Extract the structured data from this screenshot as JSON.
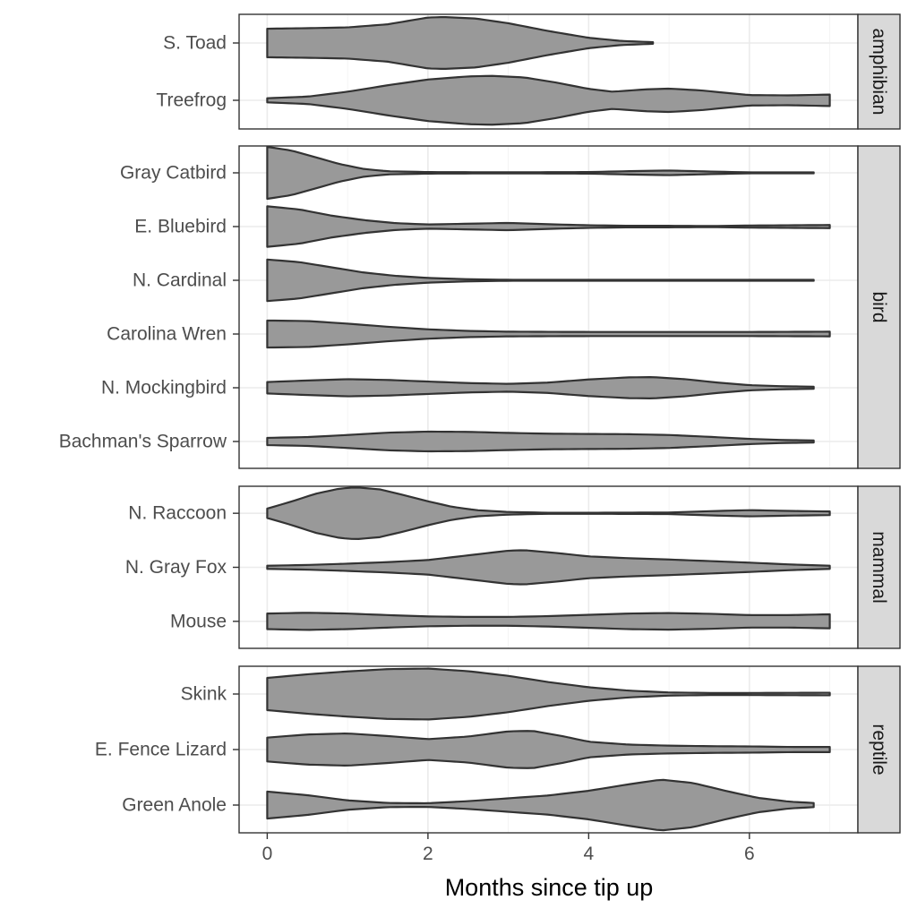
{
  "chart_data": {
    "type": "violin",
    "orientation": "horizontal",
    "title": "",
    "xlabel": "Months since tip up",
    "ylabel": "",
    "xlim": [
      -0.35,
      7.35
    ],
    "x_ticks": [
      0,
      2,
      4,
      6
    ],
    "grid": true,
    "fill_color": "#999999",
    "stroke_color": "#333333",
    "facets": [
      {
        "label": "amphibian",
        "categories": [
          {
            "name": "S. Toad",
            "min": 0,
            "max": 4.8,
            "density": [
              [
                0,
                0.55
              ],
              [
                0.5,
                0.57
              ],
              [
                1,
                0.6
              ],
              [
                1.5,
                0.72
              ],
              [
                2,
                0.98
              ],
              [
                2.2,
                1.0
              ],
              [
                2.6,
                0.94
              ],
              [
                3,
                0.76
              ],
              [
                3.5,
                0.46
              ],
              [
                4,
                0.2
              ],
              [
                4.4,
                0.08
              ],
              [
                4.8,
                0.03
              ]
            ]
          },
          {
            "name": "Treefrog",
            "min": 0,
            "max": 7,
            "density": [
              [
                0,
                0.08
              ],
              [
                0.5,
                0.14
              ],
              [
                1,
                0.33
              ],
              [
                1.5,
                0.58
              ],
              [
                2,
                0.8
              ],
              [
                2.5,
                0.92
              ],
              [
                2.8,
                0.94
              ],
              [
                3.2,
                0.88
              ],
              [
                3.6,
                0.68
              ],
              [
                4,
                0.44
              ],
              [
                4.3,
                0.33
              ],
              [
                4.7,
                0.42
              ],
              [
                5,
                0.45
              ],
              [
                5.4,
                0.38
              ],
              [
                6,
                0.2
              ],
              [
                6.5,
                0.19
              ],
              [
                7,
                0.22
              ]
            ]
          }
        ]
      },
      {
        "label": "bird",
        "categories": [
          {
            "name": "Gray Catbird",
            "min": 0,
            "max": 6.8,
            "density": [
              [
                0,
                1.0
              ],
              [
                0.3,
                0.86
              ],
              [
                0.6,
                0.6
              ],
              [
                0.9,
                0.34
              ],
              [
                1.2,
                0.15
              ],
              [
                1.5,
                0.06
              ],
              [
                2,
                0.03
              ],
              [
                3,
                0.02
              ],
              [
                4,
                0.03
              ],
              [
                4.6,
                0.07
              ],
              [
                5,
                0.09
              ],
              [
                5.5,
                0.05
              ],
              [
                6,
                0.02
              ],
              [
                6.8,
                0.02
              ]
            ]
          },
          {
            "name": "E. Bluebird",
            "min": 0,
            "max": 7,
            "density": [
              [
                0,
                0.78
              ],
              [
                0.4,
                0.66
              ],
              [
                0.8,
                0.42
              ],
              [
                1.2,
                0.25
              ],
              [
                1.6,
                0.13
              ],
              [
                2,
                0.08
              ],
              [
                2.5,
                0.11
              ],
              [
                3,
                0.14
              ],
              [
                3.5,
                0.09
              ],
              [
                4,
                0.05
              ],
              [
                4.5,
                0.03
              ],
              [
                5,
                0.03
              ],
              [
                5.5,
                0.02
              ],
              [
                6,
                0.04
              ],
              [
                6.5,
                0.05
              ],
              [
                7,
                0.06
              ]
            ]
          },
          {
            "name": "N. Cardinal",
            "min": 0,
            "max": 6.8,
            "density": [
              [
                0,
                0.8
              ],
              [
                0.4,
                0.7
              ],
              [
                0.8,
                0.5
              ],
              [
                1.2,
                0.3
              ],
              [
                1.6,
                0.17
              ],
              [
                2,
                0.09
              ],
              [
                2.5,
                0.04
              ],
              [
                3,
                0.02
              ],
              [
                4,
                0.02
              ],
              [
                5,
                0.02
              ],
              [
                6,
                0.02
              ],
              [
                6.8,
                0.02
              ]
            ]
          },
          {
            "name": "Carolina Wren",
            "min": 0,
            "max": 7,
            "density": [
              [
                0,
                0.52
              ],
              [
                0.5,
                0.5
              ],
              [
                1,
                0.4
              ],
              [
                1.5,
                0.28
              ],
              [
                2,
                0.18
              ],
              [
                2.5,
                0.12
              ],
              [
                3,
                0.09
              ],
              [
                4,
                0.08
              ],
              [
                5,
                0.08
              ],
              [
                6,
                0.08
              ],
              [
                7,
                0.09
              ]
            ]
          },
          {
            "name": "N. Mockingbird",
            "min": 0,
            "max": 6.8,
            "density": [
              [
                0,
                0.22
              ],
              [
                0.5,
                0.28
              ],
              [
                1,
                0.33
              ],
              [
                1.5,
                0.3
              ],
              [
                2,
                0.24
              ],
              [
                2.5,
                0.18
              ],
              [
                3,
                0.15
              ],
              [
                3.5,
                0.2
              ],
              [
                4,
                0.32
              ],
              [
                4.5,
                0.4
              ],
              [
                4.8,
                0.41
              ],
              [
                5.2,
                0.33
              ],
              [
                5.6,
                0.2
              ],
              [
                6,
                0.1
              ],
              [
                6.4,
                0.06
              ],
              [
                6.8,
                0.04
              ]
            ]
          },
          {
            "name": "Bachman's Sparrow",
            "min": 0,
            "max": 6.8,
            "density": [
              [
                0,
                0.14
              ],
              [
                0.5,
                0.17
              ],
              [
                1,
                0.25
              ],
              [
                1.5,
                0.34
              ],
              [
                2,
                0.38
              ],
              [
                2.5,
                0.37
              ],
              [
                3,
                0.33
              ],
              [
                3.5,
                0.3
              ],
              [
                4,
                0.29
              ],
              [
                4.5,
                0.28
              ],
              [
                5,
                0.25
              ],
              [
                5.5,
                0.18
              ],
              [
                6,
                0.1
              ],
              [
                6.4,
                0.06
              ],
              [
                6.8,
                0.04
              ]
            ]
          }
        ]
      },
      {
        "label": "mammal",
        "categories": [
          {
            "name": "N. Raccoon",
            "min": 0,
            "max": 7,
            "density": [
              [
                0,
                0.18
              ],
              [
                0.3,
                0.45
              ],
              [
                0.6,
                0.75
              ],
              [
                0.9,
                0.95
              ],
              [
                1.1,
                1.0
              ],
              [
                1.4,
                0.92
              ],
              [
                1.7,
                0.7
              ],
              [
                2,
                0.46
              ],
              [
                2.3,
                0.25
              ],
              [
                2.6,
                0.12
              ],
              [
                3,
                0.05
              ],
              [
                3.5,
                0.02
              ],
              [
                4,
                0.02
              ],
              [
                5,
                0.03
              ],
              [
                5.5,
                0.08
              ],
              [
                6,
                0.12
              ],
              [
                6.5,
                0.09
              ],
              [
                7,
                0.07
              ]
            ]
          },
          {
            "name": "N. Gray Fox",
            "min": 0,
            "max": 7,
            "density": [
              [
                0,
                0.06
              ],
              [
                0.5,
                0.09
              ],
              [
                1,
                0.14
              ],
              [
                1.5,
                0.2
              ],
              [
                2,
                0.28
              ],
              [
                2.5,
                0.46
              ],
              [
                3,
                0.64
              ],
              [
                3.2,
                0.66
              ],
              [
                3.6,
                0.55
              ],
              [
                4,
                0.42
              ],
              [
                4.5,
                0.35
              ],
              [
                5,
                0.3
              ],
              [
                5.5,
                0.24
              ],
              [
                6,
                0.18
              ],
              [
                6.5,
                0.11
              ],
              [
                7,
                0.06
              ]
            ]
          },
          {
            "name": "Mouse",
            "min": 0,
            "max": 7,
            "density": [
              [
                0,
                0.3
              ],
              [
                0.5,
                0.33
              ],
              [
                1,
                0.3
              ],
              [
                1.5,
                0.24
              ],
              [
                2,
                0.19
              ],
              [
                2.5,
                0.17
              ],
              [
                3,
                0.17
              ],
              [
                3.5,
                0.2
              ],
              [
                4,
                0.25
              ],
              [
                4.5,
                0.3
              ],
              [
                5,
                0.32
              ],
              [
                5.5,
                0.29
              ],
              [
                6,
                0.24
              ],
              [
                6.5,
                0.24
              ],
              [
                7,
                0.27
              ]
            ]
          }
        ]
      },
      {
        "label": "reptile",
        "categories": [
          {
            "name": "Skink",
            "min": 0,
            "max": 7,
            "density": [
              [
                0,
                0.62
              ],
              [
                0.5,
                0.76
              ],
              [
                1,
                0.87
              ],
              [
                1.5,
                0.96
              ],
              [
                2,
                0.98
              ],
              [
                2.5,
                0.88
              ],
              [
                3,
                0.7
              ],
              [
                3.5,
                0.46
              ],
              [
                4,
                0.26
              ],
              [
                4.5,
                0.13
              ],
              [
                5,
                0.06
              ],
              [
                5.5,
                0.04
              ],
              [
                6,
                0.04
              ],
              [
                7,
                0.05
              ]
            ]
          },
          {
            "name": "E. Fence Lizard",
            "min": 0,
            "max": 7,
            "density": [
              [
                0,
                0.46
              ],
              [
                0.5,
                0.58
              ],
              [
                1,
                0.62
              ],
              [
                1.5,
                0.52
              ],
              [
                2,
                0.4
              ],
              [
                2.5,
                0.5
              ],
              [
                3,
                0.7
              ],
              [
                3.3,
                0.72
              ],
              [
                3.7,
                0.5
              ],
              [
                4,
                0.3
              ],
              [
                4.5,
                0.19
              ],
              [
                5,
                0.15
              ],
              [
                5.5,
                0.13
              ],
              [
                6,
                0.12
              ],
              [
                6.5,
                0.1
              ],
              [
                7,
                0.1
              ]
            ]
          },
          {
            "name": "Green Anole",
            "min": 0,
            "max": 6.8,
            "density": [
              [
                0,
                0.52
              ],
              [
                0.5,
                0.38
              ],
              [
                1,
                0.18
              ],
              [
                1.5,
                0.08
              ],
              [
                2,
                0.07
              ],
              [
                2.5,
                0.15
              ],
              [
                3,
                0.26
              ],
              [
                3.5,
                0.37
              ],
              [
                4,
                0.55
              ],
              [
                4.5,
                0.8
              ],
              [
                4.9,
                0.98
              ],
              [
                5.3,
                0.85
              ],
              [
                5.7,
                0.55
              ],
              [
                6.1,
                0.28
              ],
              [
                6.5,
                0.13
              ],
              [
                6.8,
                0.08
              ]
            ]
          }
        ]
      }
    ]
  }
}
